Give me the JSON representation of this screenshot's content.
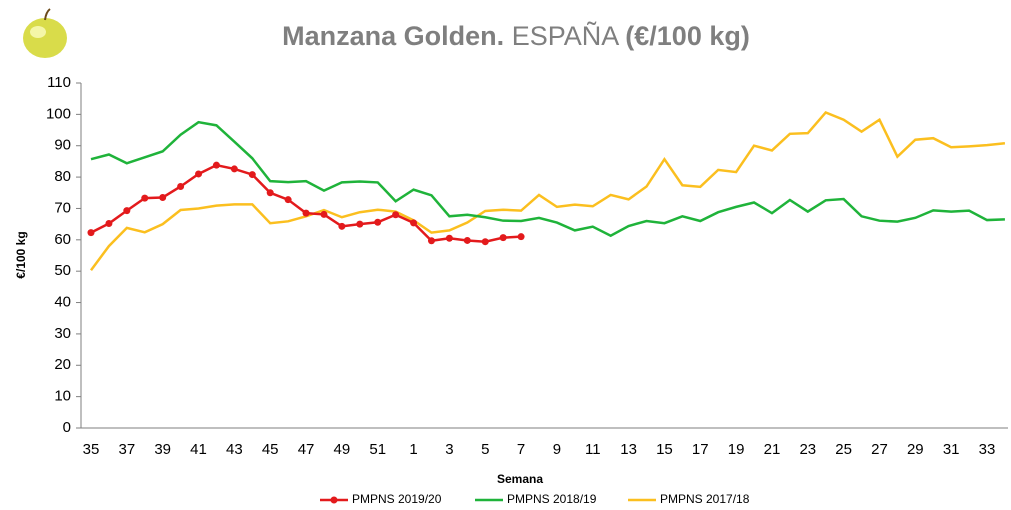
{
  "chart_data": {
    "type": "line",
    "title": [
      "Manzana Golden.",
      "ESPAÑA",
      "(€/100 kg)"
    ],
    "y_label": "€/100 kg",
    "x_label": "Semana",
    "categories": [
      "35",
      null,
      "37",
      null,
      "39",
      null,
      "41",
      null,
      "43",
      null,
      "45",
      null,
      "47",
      null,
      "49",
      null,
      "51",
      null,
      "1",
      null,
      "3",
      null,
      "5",
      null,
      "7",
      null,
      "9",
      null,
      "11",
      null,
      "13",
      null,
      "15",
      null,
      "17",
      null,
      "19",
      null,
      "21",
      null,
      "23",
      null,
      "25",
      null,
      "27",
      null,
      "29",
      null,
      "31",
      null,
      "33",
      null
    ],
    "ylim": [
      0,
      110
    ],
    "yticks": [
      0,
      10,
      20,
      30,
      40,
      50,
      60,
      70,
      80,
      90,
      100,
      110
    ],
    "grid": false,
    "series": [
      {
        "name": "PMPNS 2019/20",
        "color": "#e31a1c",
        "markers": true,
        "values": [
          62.3,
          65.2,
          69.3,
          73.3,
          73.5,
          77,
          81,
          83.8,
          82.6,
          80.8,
          75,
          72.8,
          68.5,
          68.1,
          64.3,
          65,
          65.6,
          68,
          65.4,
          59.7,
          60.5,
          59.8,
          59.4,
          60.7,
          61,
          null,
          null,
          null,
          null,
          null,
          null,
          null,
          null,
          null,
          null,
          null,
          null,
          null,
          null,
          null,
          null,
          null,
          null,
          null,
          null,
          null,
          null,
          null,
          null,
          null,
          null,
          null
        ]
      },
      {
        "name": "PMPNS 2018/19",
        "color": "#1fb33a",
        "markers": false,
        "values": [
          85.7,
          87.2,
          84.4,
          86.3,
          88.2,
          93.5,
          97.5,
          96.5,
          91.3,
          86,
          78.7,
          78.4,
          78.7,
          75.7,
          78.3,
          78.6,
          78.3,
          72.3,
          76,
          74.2,
          67.5,
          68,
          67.2,
          66.1,
          66,
          67,
          65.5,
          63,
          64.2,
          61.3,
          64.4,
          66,
          65.3,
          67.5,
          66,
          68.8,
          70.5,
          71.9,
          68.5,
          72.7,
          69,
          72.6,
          73,
          67.5,
          66.1,
          65.8,
          67,
          69.4,
          69,
          69.3,
          66.3,
          66.5
        ]
      },
      {
        "name": "PMPNS 2017/18",
        "color": "#fbbf1f",
        "markers": false,
        "values": [
          50.3,
          58,
          63.8,
          62.4,
          65,
          69.5,
          70,
          70.9,
          71.3,
          71.3,
          65.3,
          65.9,
          67.5,
          69.5,
          67.2,
          68.8,
          69.6,
          69,
          66.2,
          62.3,
          63,
          65.5,
          69.2,
          69.6,
          69.3,
          74.3,
          70.5,
          71.2,
          70.7,
          74.3,
          72.9,
          77,
          85.7,
          77.4,
          76.9,
          82.3,
          81.6,
          90,
          88.5,
          93.8,
          94,
          100.6,
          98.3,
          94.5,
          98.3,
          86.5,
          91.9,
          92.4,
          89.5,
          89.8,
          90.2,
          90.8
        ]
      }
    ]
  }
}
